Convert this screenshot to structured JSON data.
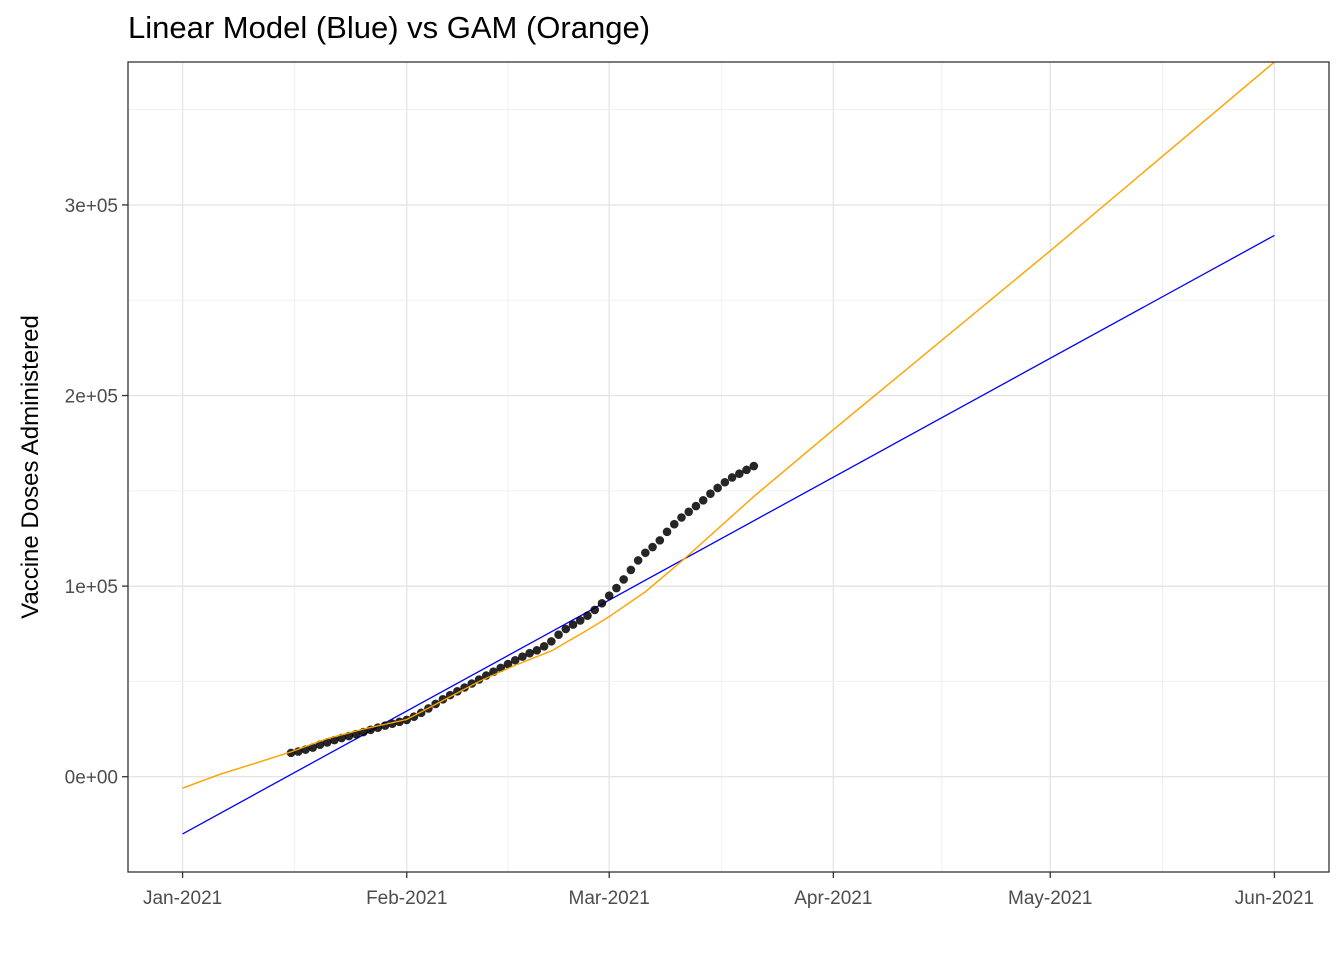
{
  "chart_data": {
    "type": "line",
    "title": "Linear Model (Blue) vs GAM (Orange)",
    "xlabel": "",
    "ylabel": "Vaccine Doses Administered",
    "x_axis": {
      "type": "date",
      "range": [
        "2021-01-01",
        "2021-06-01"
      ],
      "major_ticks": [
        "2021-01-01",
        "2021-02-01",
        "2021-03-01",
        "2021-04-01",
        "2021-05-01",
        "2021-06-01"
      ],
      "tick_labels": [
        "Jan-2021",
        "Feb-2021",
        "Mar-2021",
        "Apr-2021",
        "May-2021",
        "Jun-2021"
      ]
    },
    "y_axis": {
      "range": [
        -50000,
        375000
      ],
      "major_ticks": [
        0,
        100000,
        200000,
        300000
      ],
      "tick_labels": [
        "0e+00",
        "1e+05",
        "2e+05",
        "3e+05"
      ]
    },
    "grid": true,
    "legend": "none",
    "series": [
      {
        "type": "line",
        "color": "#0000FF",
        "x": [
          "2021-01-01",
          "2021-06-01"
        ],
        "y": [
          -30000,
          284000
        ]
      },
      {
        "type": "line",
        "color": "#FFA500",
        "x": [
          "2021-01-01",
          "2021-01-06",
          "2021-01-11",
          "2021-01-16",
          "2021-01-21",
          "2021-01-26",
          "2021-02-01",
          "2021-02-06",
          "2021-02-11",
          "2021-02-16",
          "2021-02-21",
          "2021-02-26",
          "2021-03-01",
          "2021-03-06",
          "2021-03-11",
          "2021-03-16",
          "2021-03-21",
          "2021-04-01",
          "2021-05-01",
          "2021-06-01"
        ],
        "y": [
          -6000,
          1000,
          7000,
          13000,
          20000,
          25000,
          30000,
          40000,
          50000,
          58500,
          66000,
          77000,
          84000,
          97000,
          113000,
          130000,
          147000,
          182000,
          276000,
          375000
        ]
      },
      {
        "type": "scatter",
        "color": "#000000",
        "x": [
          "2021-01-16",
          "2021-01-17",
          "2021-01-18",
          "2021-01-19",
          "2021-01-20",
          "2021-01-21",
          "2021-01-22",
          "2021-01-23",
          "2021-01-24",
          "2021-01-25",
          "2021-01-26",
          "2021-01-27",
          "2021-01-28",
          "2021-01-29",
          "2021-01-30",
          "2021-01-31",
          "2021-02-01",
          "2021-02-02",
          "2021-02-03",
          "2021-02-04",
          "2021-02-05",
          "2021-02-06",
          "2021-02-07",
          "2021-02-08",
          "2021-02-09",
          "2021-02-10",
          "2021-02-11",
          "2021-02-12",
          "2021-02-13",
          "2021-02-14",
          "2021-02-15",
          "2021-02-16",
          "2021-02-17",
          "2021-02-18",
          "2021-02-19",
          "2021-02-20",
          "2021-02-21",
          "2021-02-22",
          "2021-02-23",
          "2021-02-24",
          "2021-02-25",
          "2021-02-26",
          "2021-02-27",
          "2021-02-28",
          "2021-03-01",
          "2021-03-02",
          "2021-03-03",
          "2021-03-04",
          "2021-03-05",
          "2021-03-06",
          "2021-03-07",
          "2021-03-08",
          "2021-03-09",
          "2021-03-10",
          "2021-03-11",
          "2021-03-12",
          "2021-03-13",
          "2021-03-14",
          "2021-03-15",
          "2021-03-16",
          "2021-03-17",
          "2021-03-18",
          "2021-03-19",
          "2021-03-20",
          "2021-03-21"
        ],
        "y": [
          12500,
          13200,
          14200,
          15300,
          16800,
          18000,
          19200,
          20300,
          21300,
          22300,
          23400,
          24600,
          25700,
          26800,
          27800,
          28800,
          29800,
          31500,
          33500,
          35800,
          38200,
          40600,
          42800,
          44800,
          46800,
          48900,
          51000,
          53100,
          55100,
          57100,
          59100,
          61100,
          63000,
          64800,
          66300,
          68400,
          71000,
          74500,
          77500,
          79800,
          82000,
          84500,
          87500,
          91000,
          95000,
          99000,
          103500,
          108500,
          113500,
          117500,
          120500,
          124000,
          128500,
          132500,
          136000,
          139000,
          142000,
          145000,
          148500,
          151500,
          154500,
          157000,
          159000,
          161000,
          163000
        ]
      }
    ]
  }
}
